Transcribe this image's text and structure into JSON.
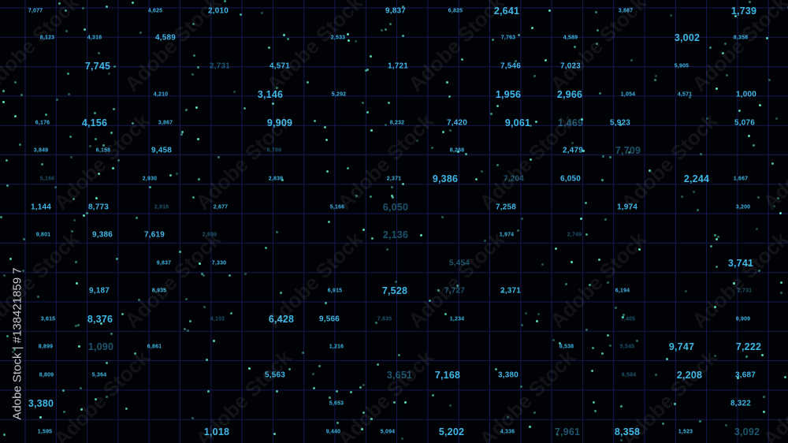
{
  "colors": {
    "background": "#010205",
    "grid": "#141a52",
    "number": "#3fb8e8",
    "dot": "#5fe8c8"
  },
  "watermark": "Adobe Stock",
  "credit": "Adobe Stock | #138421859 7",
  "numbers": [
    "7,077",
    "4,625",
    "2,010",
    "9,837",
    "6,825",
    "2,641",
    "3,867",
    "1,739",
    "8,123",
    "4,318",
    "4,589",
    "2,533",
    "7,763",
    "4,589",
    "3,002",
    "8,358",
    "7,745",
    "2,731",
    "4,571",
    "1,721",
    "7,546",
    "7,023",
    "5,905",
    "4,210",
    "3,146",
    "5,292",
    "1,956",
    "2,966",
    "1,054",
    "4,571",
    "1,000",
    "6,176",
    "4,156",
    "3,867",
    "9,909",
    "8,232",
    "7,420",
    "9,061",
    "1,469",
    "5,923",
    "5,076",
    "3,849",
    "6,158",
    "9,458",
    "6,789",
    "8,268",
    "2,479",
    "7,709",
    "5,166",
    "2,930",
    "2,839",
    "2,371",
    "9,386",
    "7,204",
    "6,050",
    "2,244",
    "1,667",
    "1,144",
    "8,773",
    "2,818",
    "2,677",
    "5,166",
    "6,050",
    "7,258",
    "1,974",
    "3,200",
    "9,801",
    "9,386",
    "7,619",
    "2,699",
    "2,136",
    "1,974",
    "2,749",
    "9,837",
    "7,330",
    "5,454",
    "3,741",
    "9,187",
    "8,935",
    "6,915",
    "7,528",
    "7,727",
    "2,371",
    "6,194",
    "2,731",
    "3,615",
    "8,376",
    "4,102",
    "6,428",
    "9,566",
    "7,835",
    "1,234",
    "7,405",
    "9,909",
    "8,899",
    "1,090",
    "6,861",
    "1,216",
    "8,538",
    "5,545",
    "9,747",
    "7,222",
    "8,809",
    "5,364",
    "5,563",
    "3,651",
    "7,168",
    "3,380",
    "9,584",
    "2,208",
    "3,687",
    "3,380",
    "5,653",
    "8,322",
    "1,595",
    "1,018",
    "9,440",
    "5,094",
    "5,202",
    "4,336",
    "7,961",
    "8,358",
    "1,523",
    "3,092"
  ]
}
